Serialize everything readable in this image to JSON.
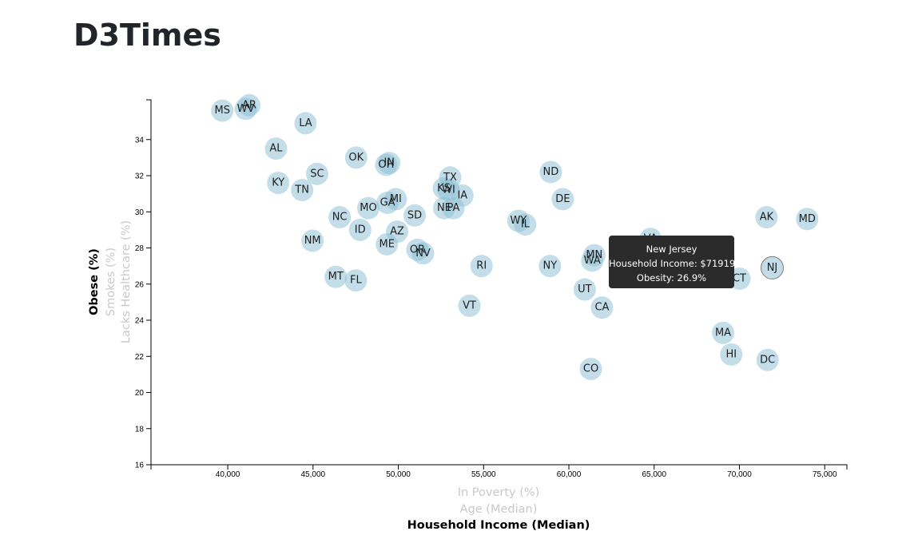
{
  "title": "D3Times",
  "chart_data": {
    "type": "scatter",
    "title": "",
    "x_label_options": [
      "In Poverty (%)",
      "Age (Median)",
      "Household Income (Median)"
    ],
    "y_label_options": [
      "Obese (%)",
      "Smokes (%)",
      "Lacks Healthcare (%)"
    ],
    "active_x": "Household Income (Median)",
    "active_y": "Obese (%)",
    "xlim": [
      35500,
      76300
    ],
    "ylim": [
      16,
      36.2
    ],
    "x_ticks": [
      40000,
      45000,
      50000,
      55000,
      60000,
      65000,
      70000,
      75000
    ],
    "y_ticks": [
      16,
      18,
      20,
      22,
      24,
      26,
      28,
      30,
      32,
      34
    ],
    "points": [
      {
        "state": "MS",
        "x": 39680,
        "y": 35.6
      },
      {
        "state": "WV",
        "x": 41050,
        "y": 35.7
      },
      {
        "state": "AR",
        "x": 41260,
        "y": 35.9
      },
      {
        "state": "LA",
        "x": 44560,
        "y": 34.9
      },
      {
        "state": "AL",
        "x": 42830,
        "y": 33.5
      },
      {
        "state": "OK",
        "x": 47530,
        "y": 33.0
      },
      {
        "state": "IN",
        "x": 49470,
        "y": 32.7
      },
      {
        "state": "OH",
        "x": 49290,
        "y": 32.6
      },
      {
        "state": "SC",
        "x": 45240,
        "y": 32.1
      },
      {
        "state": "KY",
        "x": 42960,
        "y": 31.6
      },
      {
        "state": "TN",
        "x": 44360,
        "y": 31.2
      },
      {
        "state": "TX",
        "x": 53040,
        "y": 31.9
      },
      {
        "state": "KS",
        "x": 52670,
        "y": 31.3
      },
      {
        "state": "WI",
        "x": 52950,
        "y": 31.2
      },
      {
        "state": "IA",
        "x": 53760,
        "y": 30.9
      },
      {
        "state": "ND",
        "x": 58940,
        "y": 32.2
      },
      {
        "state": "DE",
        "x": 59640,
        "y": 30.7
      },
      {
        "state": "MI",
        "x": 49850,
        "y": 30.7
      },
      {
        "state": "GA",
        "x": 49370,
        "y": 30.5
      },
      {
        "state": "MO",
        "x": 48240,
        "y": 30.2
      },
      {
        "state": "NE",
        "x": 52690,
        "y": 30.2
      },
      {
        "state": "PA",
        "x": 53230,
        "y": 30.2
      },
      {
        "state": "NC",
        "x": 46560,
        "y": 29.7
      },
      {
        "state": "SD",
        "x": 50960,
        "y": 29.8
      },
      {
        "state": "WY",
        "x": 57040,
        "y": 29.5
      },
      {
        "state": "IL",
        "x": 57440,
        "y": 29.3
      },
      {
        "state": "AK",
        "x": 71590,
        "y": 29.7
      },
      {
        "state": "MD",
        "x": 73970,
        "y": 29.6
      },
      {
        "state": "ID",
        "x": 47760,
        "y": 29.0
      },
      {
        "state": "AZ",
        "x": 49930,
        "y": 28.9
      },
      {
        "state": "NM",
        "x": 44970,
        "y": 28.4
      },
      {
        "state": "ME",
        "x": 49330,
        "y": 28.2
      },
      {
        "state": "VA",
        "x": 64790,
        "y": 28.5
      },
      {
        "state": "OR",
        "x": 51120,
        "y": 27.9
      },
      {
        "state": "NV",
        "x": 51450,
        "y": 27.7
      },
      {
        "state": "MN",
        "x": 61490,
        "y": 27.6
      },
      {
        "state": "WA",
        "x": 61370,
        "y": 27.3
      },
      {
        "state": "RI",
        "x": 54880,
        "y": 27.0
      },
      {
        "state": "NY",
        "x": 58890,
        "y": 27.0
      },
      {
        "state": "NJ",
        "x": 71919,
        "y": 26.9
      },
      {
        "state": "CT",
        "x": 70000,
        "y": 26.3
      },
      {
        "state": "MT",
        "x": 46330,
        "y": 26.4
      },
      {
        "state": "FL",
        "x": 47510,
        "y": 26.2
      },
      {
        "state": "UT",
        "x": 60930,
        "y": 25.7
      },
      {
        "state": "CA",
        "x": 61940,
        "y": 24.7
      },
      {
        "state": "VT",
        "x": 54170,
        "y": 24.8
      },
      {
        "state": "MA",
        "x": 69040,
        "y": 23.3
      },
      {
        "state": "HI",
        "x": 69520,
        "y": 22.1
      },
      {
        "state": "DC",
        "x": 71650,
        "y": 21.8
      },
      {
        "state": "CO",
        "x": 61290,
        "y": 21.3
      }
    ]
  },
  "tooltip": {
    "state": "New Jersey",
    "income_line": "Household Income: $71919",
    "obesity_line": "Obesity: 26.9%"
  },
  "colors": {
    "circle_fill": "#89bdd3",
    "tooltip_bg": "#2b2b2b",
    "inactive_label": "#c9c9c9"
  }
}
